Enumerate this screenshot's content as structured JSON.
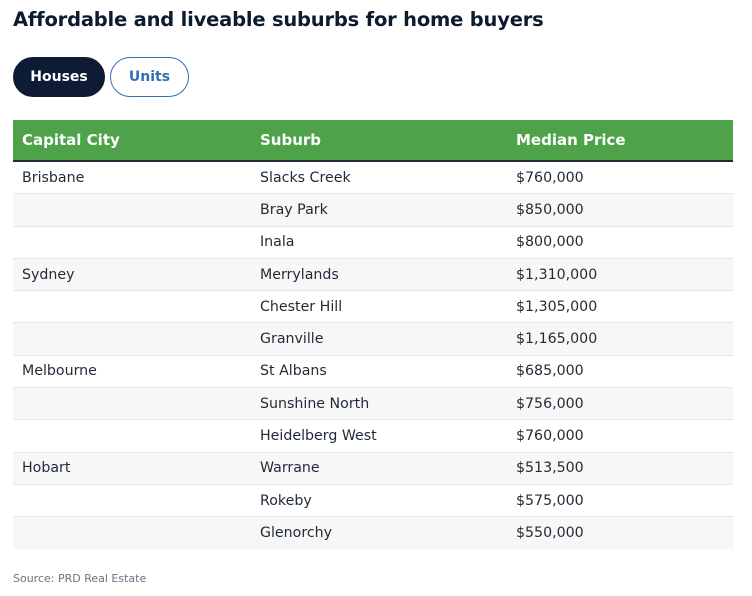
{
  "title": "Affordable and liveable suburbs for home buyers",
  "toggles": {
    "houses": "Houses",
    "units": "Units",
    "active": "Houses"
  },
  "table": {
    "headers": [
      "Capital City",
      "Suburb",
      "Median Price"
    ],
    "rows": [
      [
        "Brisbane",
        "Slacks Creek",
        "$760,000"
      ],
      [
        "",
        "Bray Park",
        "$850,000"
      ],
      [
        "",
        "Inala",
        "$800,000"
      ],
      [
        "Sydney",
        "Merrylands",
        "$1,310,000"
      ],
      [
        "",
        "Chester Hill",
        "$1,305,000"
      ],
      [
        "",
        "Granville",
        "$1,165,000"
      ],
      [
        "Melbourne",
        "St Albans",
        "$685,000"
      ],
      [
        "",
        "Sunshine North",
        "$756,000"
      ],
      [
        "",
        "Heidelberg West",
        "$760,000"
      ],
      [
        "Hobart",
        "Warrane",
        "$513,500"
      ],
      [
        "",
        "Rokeby",
        "$575,000"
      ],
      [
        "",
        "Glenorchy",
        "$550,000"
      ]
    ]
  },
  "source": "Source: PRD Real Estate",
  "colors": {
    "header_bg": "#4ea24a",
    "active_toggle_bg": "#0e1b34",
    "inactive_toggle_text": "#2f6fb5"
  }
}
